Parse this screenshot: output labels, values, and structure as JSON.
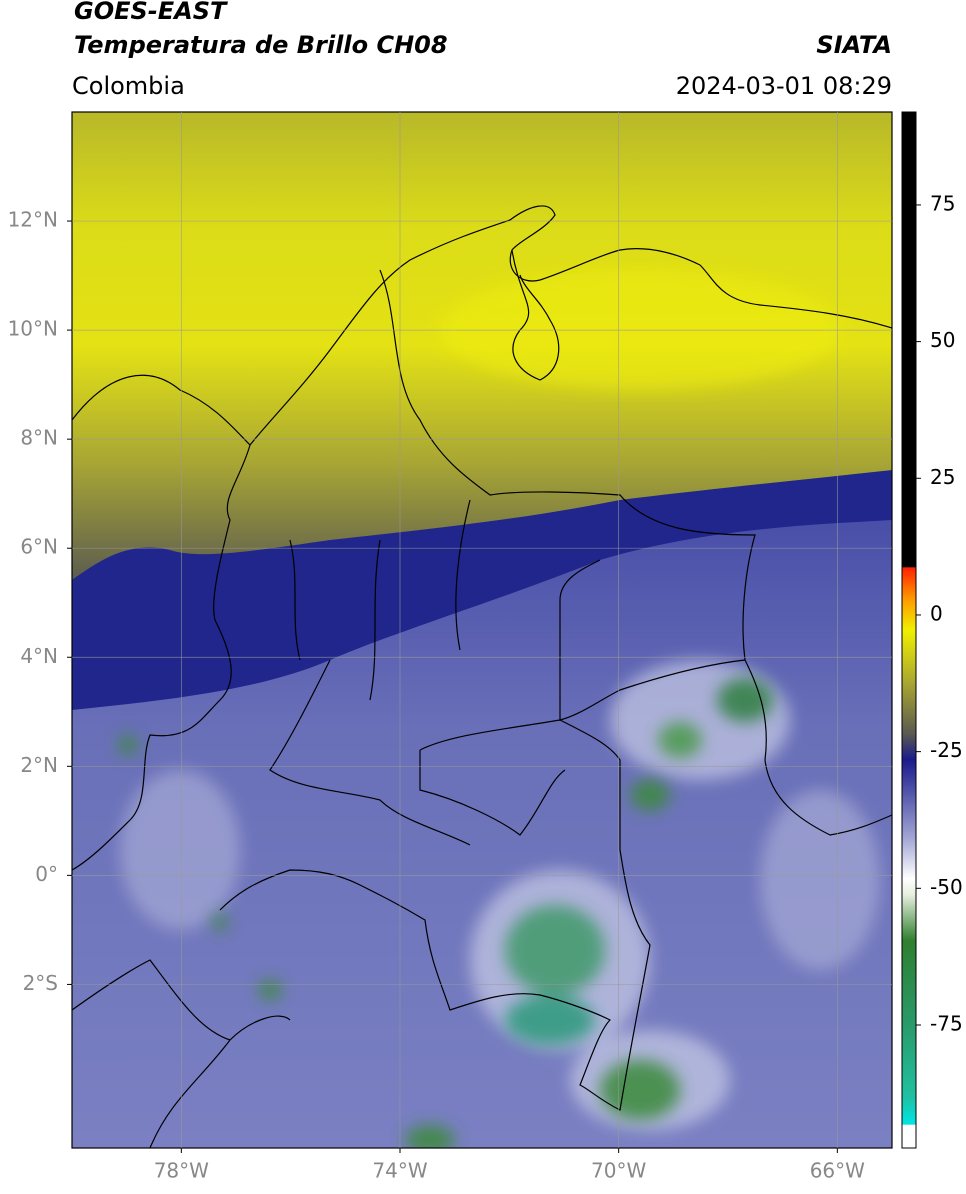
{
  "header": {
    "title": "GOES-EAST",
    "subtitle": "Temperatura de Brillo CH08",
    "source": "SIATA",
    "region": "Colombia",
    "datetime": "2024-03-01 08:29"
  },
  "map": {
    "xlim": [
      -80,
      -65
    ],
    "ylim": [
      -5,
      14
    ],
    "xticks": [
      {
        "value": -78,
        "label": "78°W"
      },
      {
        "value": -74,
        "label": "74°W"
      },
      {
        "value": -70,
        "label": "70°W"
      },
      {
        "value": -66,
        "label": "66°W"
      }
    ],
    "yticks": [
      {
        "value": 12,
        "label": "12°N"
      },
      {
        "value": 10,
        "label": "10°N"
      },
      {
        "value": 8,
        "label": "8°N"
      },
      {
        "value": 6,
        "label": "6°N"
      },
      {
        "value": 4,
        "label": "4°N"
      },
      {
        "value": 2,
        "label": "2°N"
      },
      {
        "value": 0,
        "label": "0°"
      },
      {
        "value": -2,
        "label": "2°S"
      }
    ],
    "grid": true
  },
  "colorbar": {
    "lim": [
      -97.5,
      92
    ],
    "ticks": [
      75,
      50,
      25,
      0,
      -25,
      -50,
      -75
    ]
  }
}
